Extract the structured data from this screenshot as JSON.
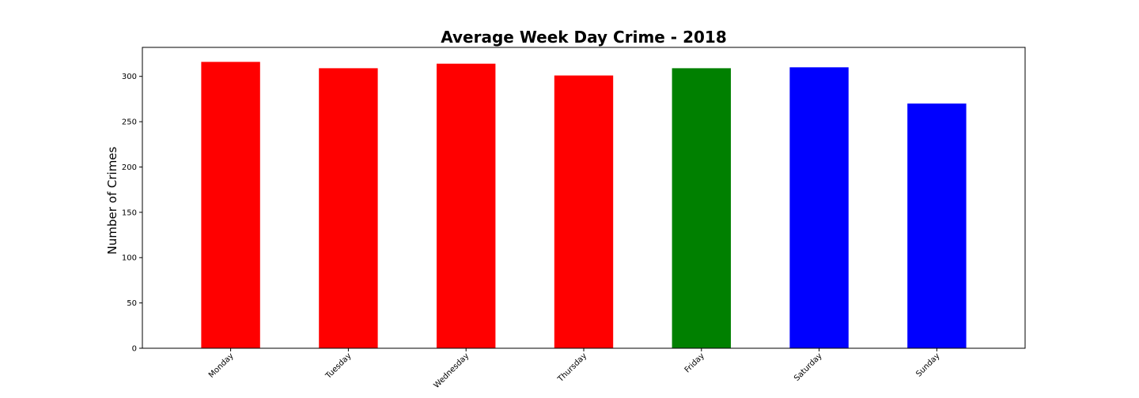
{
  "chart_data": {
    "type": "bar",
    "title": "Average Week Day Crime - 2018",
    "xlabel": "",
    "ylabel": "Number of Crimes",
    "categories": [
      "Monday",
      "Tuesday",
      "Wednesday",
      "Thursday",
      "Friday",
      "Saturday",
      "Sunday"
    ],
    "values": [
      316,
      309,
      314,
      301,
      309,
      310,
      270
    ],
    "bar_colors": [
      "#ff0000",
      "#ff0000",
      "#ff0000",
      "#ff0000",
      "#008000",
      "#0000ff",
      "#0000ff"
    ],
    "ylim": [
      0,
      332
    ],
    "yticks": [
      0,
      50,
      100,
      150,
      200,
      250,
      300
    ],
    "grid": false,
    "legend": "none"
  }
}
